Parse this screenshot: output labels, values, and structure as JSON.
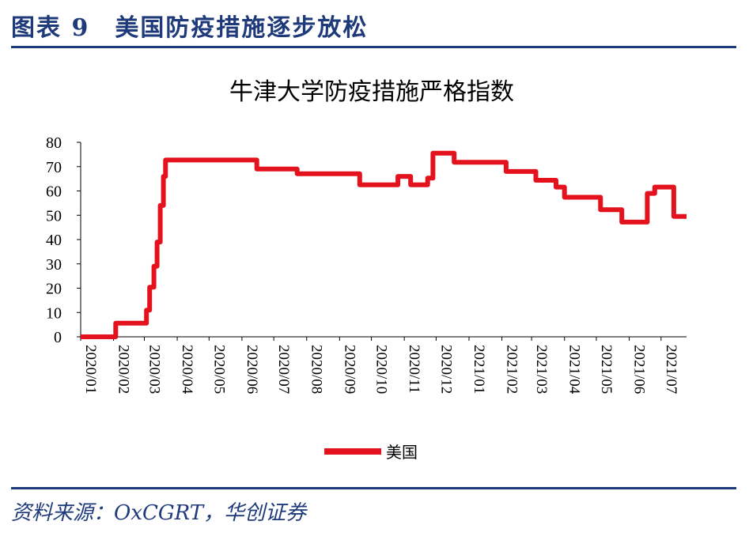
{
  "figure": {
    "title": "图表 9　美国防疫措施逐步放松",
    "source": "资料来源：OxCGRT，华创证券",
    "accent_color": "#1f3a7a"
  },
  "chart_data": {
    "type": "line",
    "title": "牛津大学防疫措施严格指数",
    "xlabel": "",
    "ylabel": "",
    "ylim": [
      0,
      80
    ],
    "yticks": [
      0,
      10,
      20,
      30,
      40,
      50,
      60,
      70,
      80
    ],
    "xlim": [
      "2020-01-01",
      "2021-07-25"
    ],
    "xticks": [
      "2020/01",
      "2020/02",
      "2020/03",
      "2020/04",
      "2020/05",
      "2020/06",
      "2020/07",
      "2020/08",
      "2020/09",
      "2020/10",
      "2020/11",
      "2020/12",
      "2021/01",
      "2021/02",
      "2021/03",
      "2021/04",
      "2021/05",
      "2021/06",
      "2021/07"
    ],
    "grid": false,
    "legend_position": "bottom",
    "series": [
      {
        "name": "美国",
        "color": "#e3121c",
        "step": true,
        "points": [
          [
            "2020-01-01",
            0
          ],
          [
            "2020-02-03",
            5.6
          ],
          [
            "2020-03-03",
            11
          ],
          [
            "2020-03-06",
            20.4
          ],
          [
            "2020-03-10",
            29
          ],
          [
            "2020-03-13",
            39
          ],
          [
            "2020-03-16",
            54
          ],
          [
            "2020-03-19",
            66
          ],
          [
            "2020-03-21",
            72.7
          ],
          [
            "2020-06-15",
            69
          ],
          [
            "2020-07-23",
            67.1
          ],
          [
            "2020-09-20",
            62.5
          ],
          [
            "2020-10-26",
            66
          ],
          [
            "2020-11-07",
            62.5
          ],
          [
            "2020-11-23",
            65.3
          ],
          [
            "2020-11-28",
            75.5
          ],
          [
            "2020-12-18",
            71.8
          ],
          [
            "2021-02-05",
            68
          ],
          [
            "2021-03-05",
            64.4
          ],
          [
            "2021-03-24",
            61.6
          ],
          [
            "2021-04-01",
            57.4
          ],
          [
            "2021-05-05",
            52.3
          ],
          [
            "2021-05-25",
            47.2
          ],
          [
            "2021-06-18",
            59
          ],
          [
            "2021-06-25",
            61.6
          ],
          [
            "2021-07-13",
            49.5
          ],
          [
            "2021-07-25",
            49.5
          ]
        ]
      }
    ]
  }
}
